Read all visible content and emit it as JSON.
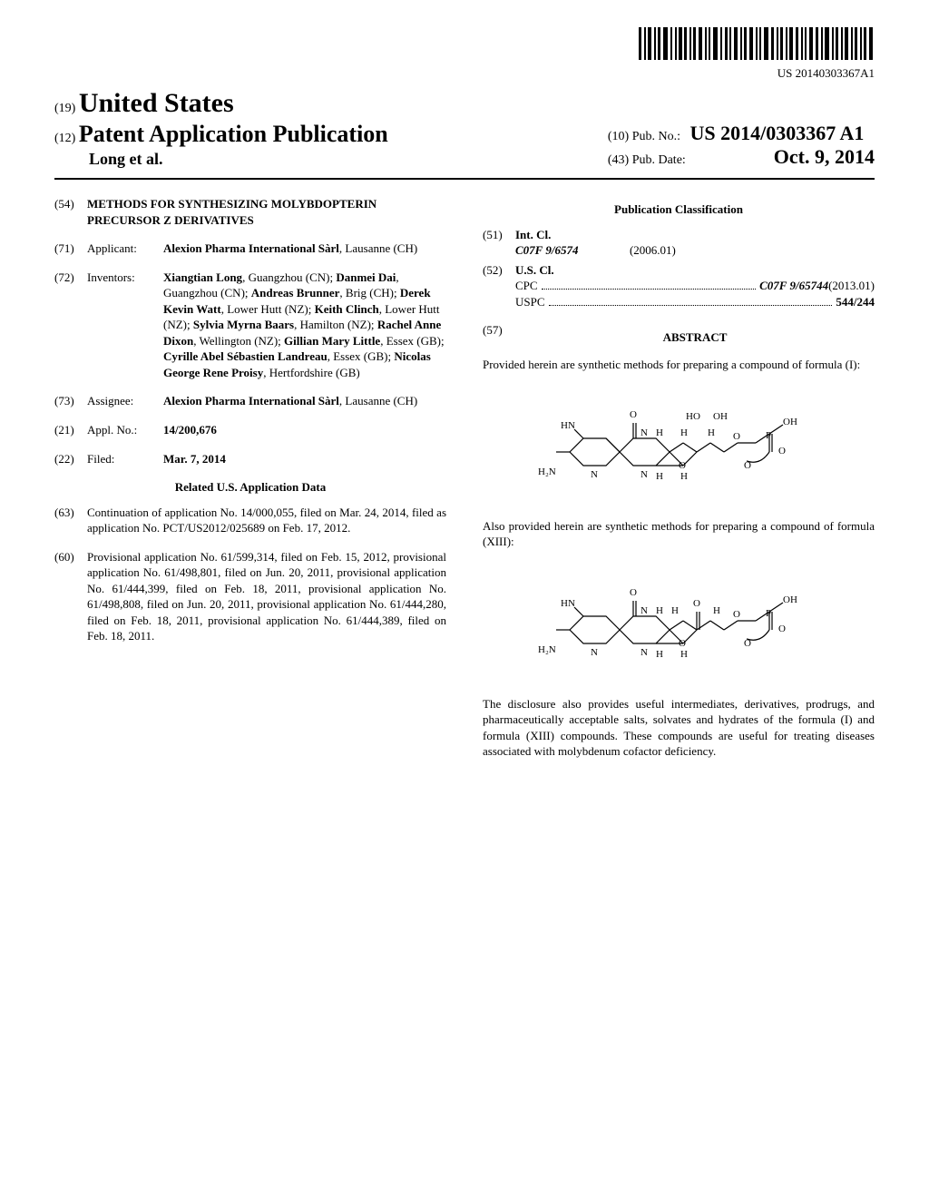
{
  "barcode_text": "US 20140303367A1",
  "header": {
    "country_code": "(19)",
    "country": "United States",
    "pub_code": "(12)",
    "pub_type": "Patent Application Publication",
    "authors_short": "Long et al.",
    "pubno_code": "(10)",
    "pubno_label": "Pub. No.:",
    "pub_number": "US 2014/0303367 A1",
    "pubdate_code": "(43)",
    "pubdate_label": "Pub. Date:",
    "pub_date": "Oct. 9, 2014"
  },
  "fields": {
    "title_code": "(54)",
    "title": "METHODS FOR SYNTHESIZING MOLYBDOPTERIN PRECURSOR Z DERIVATIVES",
    "applicant_code": "(71)",
    "applicant_label": "Applicant:",
    "applicant": "Alexion Pharma International Sàrl",
    "applicant_loc": ", Lausanne (CH)",
    "inventors_code": "(72)",
    "inventors_label": "Inventors:",
    "inventors": [
      {
        "name": "Xiangtian Long",
        "loc": ", Guangzhou (CN); "
      },
      {
        "name": "Danmei Dai",
        "loc": ", Guangzhou (CN); "
      },
      {
        "name": "Andreas Brunner",
        "loc": ", Brig (CH); "
      },
      {
        "name": "Derek Kevin Watt",
        "loc": ", Lower Hutt (NZ); "
      },
      {
        "name": "Keith Clinch",
        "loc": ", Lower Hutt (NZ); "
      },
      {
        "name": "Sylvia Myrna Baars",
        "loc": ", Hamilton (NZ); "
      },
      {
        "name": "Rachel Anne Dixon",
        "loc": ", Wellington (NZ); "
      },
      {
        "name": "Gillian Mary Little",
        "loc": ", Essex (GB); "
      },
      {
        "name": "Cyrille Abel Sébastien Landreau",
        "loc": ", Essex (GB); "
      },
      {
        "name": "Nicolas George Rene Proisy",
        "loc": ", Hertfordshire (GB)"
      }
    ],
    "assignee_code": "(73)",
    "assignee_label": "Assignee:",
    "assignee": "Alexion Pharma International Sàrl",
    "assignee_loc": ", Lausanne (CH)",
    "applno_code": "(21)",
    "applno_label": "Appl. No.:",
    "applno": "14/200,676",
    "filed_code": "(22)",
    "filed_label": "Filed:",
    "filed": "Mar. 7, 2014",
    "related_heading": "Related U.S. Application Data",
    "continuation_code": "(63)",
    "continuation": "Continuation of application No. 14/000,055, filed on Mar. 24, 2014, filed as application No. PCT/US2012/025689 on Feb. 17, 2012.",
    "provisional_code": "(60)",
    "provisional": "Provisional application No. 61/599,314, filed on Feb. 15, 2012, provisional application No. 61/498,801, filed on Jun. 20, 2011, provisional application No. 61/444,399, filed on Feb. 18, 2011, provisional application No. 61/498,808, filed on Jun. 20, 2011, provisional application No. 61/444,280, filed on Feb. 18, 2011, provisional application No. 61/444,389, filed on Feb. 18, 2011."
  },
  "classification": {
    "heading": "Publication Classification",
    "intcl_code": "(51)",
    "intcl_label": "Int. Cl.",
    "intcl_class": "C07F 9/6574",
    "intcl_year": "(2006.01)",
    "uscl_code": "(52)",
    "uscl_label": "U.S. Cl.",
    "cpc_label": "CPC",
    "cpc_value": "C07F 9/65744",
    "cpc_year": "(2013.01)",
    "uspc_label": "USPC",
    "uspc_value": "544/244"
  },
  "abstract": {
    "code": "(57)",
    "heading": "ABSTRACT",
    "p1": "Provided herein are synthetic methods for preparing a compound of formula (I):",
    "p2": "Also provided herein are synthetic methods for preparing a compound of formula (XIII):",
    "p3": "The disclosure also provides useful intermediates, derivatives, prodrugs, and pharmaceutically acceptable salts, solvates and hydrates of the formula (I) and formula (XIII) compounds. These compounds are useful for treating diseases associated with molybdenum cofactor deficiency."
  },
  "chem_labels": {
    "O": "O",
    "HO": "HO",
    "OH": "OH",
    "H": "H",
    "HN": "HN",
    "N": "N",
    "H2N": "H₂N",
    "P": "P"
  },
  "style": {
    "page_bg": "#ffffff",
    "text_color": "#000000",
    "rule_color": "#000000",
    "font_body": 13,
    "font_country": 30,
    "font_pubtype": 26,
    "font_pubno": 22
  }
}
